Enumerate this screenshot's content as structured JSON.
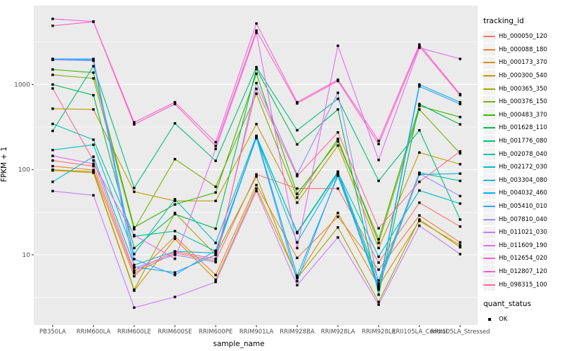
{
  "chart_data": {
    "type": "line",
    "xlabel": "sample_name",
    "ylabel": "FPKM + 1",
    "yscale": "log10",
    "ytick_labels": [
      "10",
      "100",
      "1000"
    ],
    "ytick_values": [
      10,
      100,
      1000
    ],
    "yminor_values": [
      3.162,
      31.62,
      316.2,
      3162
    ],
    "ylim": [
      1.5,
      8600
    ],
    "grid": true,
    "legend_position": "right",
    "legend_title": "tracking_id",
    "legend2_title": "quant_status",
    "legend2_items": [
      {
        "label": "OK"
      }
    ],
    "point_shape": "black-square",
    "colors": {
      "panel_bg": "#EBEBEB",
      "grid": "#FFFFFF",
      "tick_text": "#4D4D4D",
      "tick_mark": "#333333",
      "point": "#000000",
      "legend_key_bg": "#F2F2F2"
    },
    "categories": [
      "PB350LA",
      "RRIM600LA",
      "RRIM600LE",
      "RRIM600SE",
      "RRIM600PE",
      "RRIM901LA",
      "RRIM928BA",
      "RRIM928LA",
      "RRIM928LE",
      "RRII105LA_Control",
      "RRII105LA_Stressed"
    ],
    "series": [
      {
        "name": "Hb_000050_120",
        "color": "#F8766D",
        "values": [
          128,
          110,
          6.1,
          10.5,
          8.5,
          88,
          60,
          60,
          8.1,
          41,
          21.5
        ]
      },
      {
        "name": "Hb_000088_180",
        "color": "#EA8331",
        "values": [
          110,
          99,
          5.6,
          16.4,
          5.8,
          66,
          9.2,
          28,
          6.7,
          29,
          14
        ]
      },
      {
        "name": "Hb_000173_370",
        "color": "#D89000",
        "values": [
          98,
          92,
          3.8,
          15.4,
          5.1,
          60,
          5.5,
          31,
          4.3,
          25,
          13
        ]
      },
      {
        "name": "Hb_000300_540",
        "color": "#C09B00",
        "values": [
          520,
          510,
          55,
          43,
          43,
          343,
          41,
          192,
          12,
          159,
          116
        ]
      },
      {
        "name": "Hb_000365_350",
        "color": "#A3A500",
        "values": [
          100,
          95,
          3.9,
          31,
          10,
          83,
          5.3,
          21,
          2.8,
          26,
          12.3
        ]
      },
      {
        "name": "Hb_000376_150",
        "color": "#7CAE00",
        "values": [
          1300,
          1180,
          20,
          133,
          63,
          780,
          47,
          230,
          13.8,
          510,
          155
        ]
      },
      {
        "name": "Hb_000483_370",
        "color": "#39B600",
        "values": [
          1500,
          1380,
          21,
          39,
          54,
          1340,
          52,
          215,
          15.2,
          560,
          415
        ]
      },
      {
        "name": "Hb_001628_110",
        "color": "#00BB4E",
        "values": [
          1000,
          750,
          12,
          30,
          20.3,
          1520,
          198,
          510,
          3.4,
          590,
          340
        ]
      },
      {
        "name": "Hb_001776_080",
        "color": "#00BF7D",
        "values": [
          285,
          1640,
          61,
          350,
          127,
          1600,
          290,
          680,
          74,
          290,
          26
        ]
      },
      {
        "name": "Hb_002078_040",
        "color": "#00C1A3",
        "values": [
          345,
          225,
          16.5,
          19,
          11,
          240,
          18.5,
          95,
          5.0,
          92,
          74
        ]
      },
      {
        "name": "Hb_002172_030",
        "color": "#00BFC4",
        "values": [
          170,
          196,
          10.2,
          45,
          13.8,
          250,
          18,
          93,
          9.5,
          57,
          40
        ]
      },
      {
        "name": "Hb_003304_080",
        "color": "#00BAE0",
        "values": [
          72,
          142,
          7.6,
          11,
          10.5,
          235,
          14,
          91,
          4.4,
          88,
          90
        ]
      },
      {
        "name": "Hb_004032_460",
        "color": "#00B0F6",
        "values": [
          1950,
          1950,
          7.2,
          6.2,
          10,
          245,
          5.7,
          85,
          4.1,
          1000,
          620
        ]
      },
      {
        "name": "Hb_005410_010",
        "color": "#35A2FF",
        "values": [
          2000,
          2000,
          8.9,
          5.8,
          11.2,
          237,
          4.9,
          89,
          3.9,
          950,
          590
        ]
      },
      {
        "name": "Hb_007810_040",
        "color": "#9590FF",
        "values": [
          1950,
          1900,
          7.0,
          10,
          8.2,
          1040,
          88,
          800,
          4.6,
          90,
          49
        ]
      },
      {
        "name": "Hb_011021_030",
        "color": "#C77CFF",
        "values": [
          56,
          50,
          2.4,
          3.2,
          4.8,
          56,
          4.4,
          16,
          2.6,
          22,
          10.2
        ]
      },
      {
        "name": "Hb_011609_190",
        "color": "#E76BF3",
        "values": [
          145,
          117,
          17,
          9,
          175,
          4050,
          12,
          2850,
          130,
          2700,
          2000
        ]
      },
      {
        "name": "Hb_012654_020",
        "color": "#FA62DB",
        "values": [
          5900,
          5500,
          360,
          620,
          210,
          5200,
          620,
          1140,
          218,
          2950,
          770
        ]
      },
      {
        "name": "Hb_012807_120",
        "color": "#FF62BC",
        "values": [
          4900,
          5450,
          340,
          590,
          190,
          4300,
          600,
          1100,
          200,
          2800,
          750
        ]
      },
      {
        "name": "Hb_098315_100",
        "color": "#FF6A98",
        "values": [
          900,
          128,
          6.5,
          10.9,
          9,
          890,
          84,
          274,
          20.5,
          72,
          164
        ]
      }
    ]
  }
}
